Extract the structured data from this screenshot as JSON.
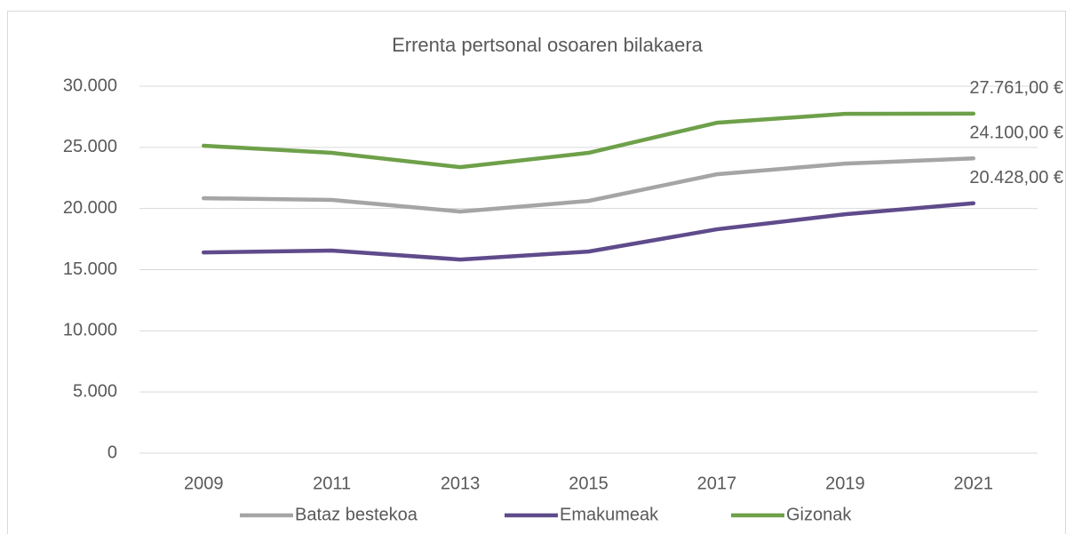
{
  "chart_data": {
    "type": "line",
    "title": "Errenta pertsonal osoaren bilakaera",
    "categories": [
      "2009",
      "2011",
      "2013",
      "2015",
      "2017",
      "2019",
      "2021"
    ],
    "series": [
      {
        "name": "Bataz bestekoa",
        "color": "#a5a5a5",
        "values": [
          20840,
          20700,
          19750,
          20620,
          22800,
          23670,
          24100
        ],
        "value_labels": [
          null,
          null,
          null,
          null,
          null,
          null,
          "24.100,00 €"
        ]
      },
      {
        "name": "Emakumeak",
        "color": "#5f4b8b",
        "values": [
          16410,
          16560,
          15830,
          16480,
          18300,
          19530,
          20428
        ],
        "value_labels": [
          null,
          null,
          null,
          null,
          null,
          null,
          "20.428,00 €"
        ]
      },
      {
        "name": "Gizonak",
        "color": "#6ea04a",
        "values": [
          25130,
          24550,
          23380,
          24550,
          27010,
          27740,
          27761
        ],
        "value_labels": [
          null,
          null,
          null,
          null,
          null,
          null,
          "27.761,00 €"
        ]
      }
    ],
    "ylim": [
      0,
      30000
    ],
    "yticks": [
      0,
      {
        "value": 5000,
        "label": "5.000"
      },
      {
        "value": 10000,
        "label": "10.000"
      },
      {
        "value": 15000,
        "label": "15.000"
      },
      {
        "value": 20000,
        "label": "20.000"
      },
      {
        "value": 25000,
        "label": "25.000"
      },
      {
        "value": 30000,
        "label": "30.000"
      }
    ],
    "grid": true,
    "legend": "bottom"
  }
}
